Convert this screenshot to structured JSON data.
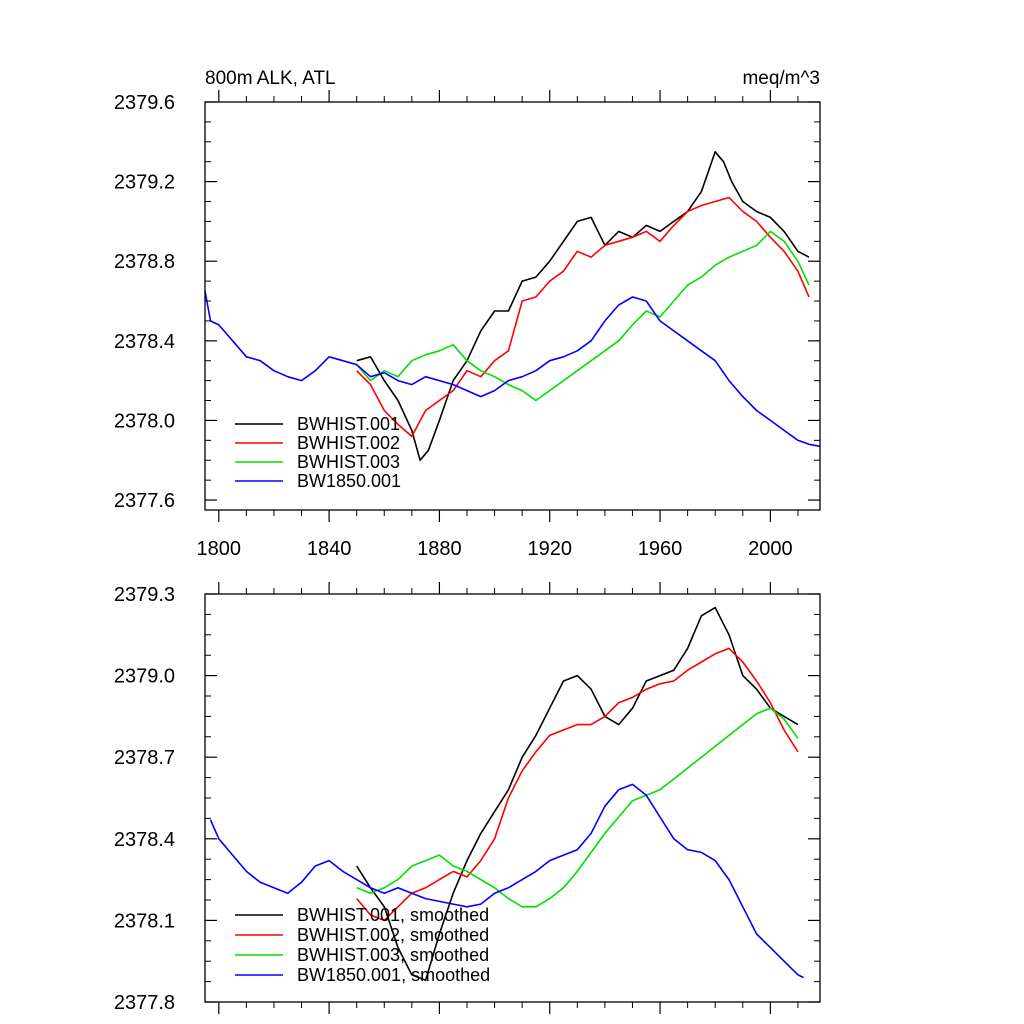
{
  "chart_data": [
    {
      "type": "line",
      "title_left": "800m ALK, ATL",
      "title_right": "meq/m^3",
      "xlim": [
        1795,
        2018
      ],
      "ylim": [
        2377.55,
        2379.6
      ],
      "xticks": [
        1800,
        1840,
        1880,
        1920,
        1960,
        2000
      ],
      "yticks": [
        2377.6,
        2378.0,
        2378.4,
        2378.8,
        2379.2,
        2379.6
      ],
      "ytick_labels": [
        "2377.6",
        "2378.0",
        "2378.4",
        "2378.8",
        "2379.2",
        "2379.6"
      ],
      "xtick_labels": [
        "1800",
        "1840",
        "1880",
        "1920",
        "1960",
        "2000"
      ],
      "legend_position": "bottom-left",
      "series": [
        {
          "name": "BWHIST.001",
          "color": "#000000",
          "x": [
            1850,
            1855,
            1860,
            1865,
            1870,
            1873,
            1876,
            1880,
            1885,
            1890,
            1895,
            1900,
            1905,
            1910,
            1915,
            1920,
            1925,
            1930,
            1935,
            1940,
            1945,
            1950,
            1955,
            1960,
            1965,
            1970,
            1975,
            1980,
            1983,
            1986,
            1990,
            1995,
            2000,
            2005,
            2010,
            2014
          ],
          "y": [
            2378.3,
            2378.32,
            2378.2,
            2378.1,
            2377.95,
            2377.8,
            2377.85,
            2378.0,
            2378.2,
            2378.3,
            2378.45,
            2378.55,
            2378.55,
            2378.7,
            2378.72,
            2378.8,
            2378.9,
            2379.0,
            2379.02,
            2378.88,
            2378.95,
            2378.92,
            2378.98,
            2378.95,
            2379.0,
            2379.05,
            2379.15,
            2379.35,
            2379.3,
            2379.2,
            2379.1,
            2379.05,
            2379.02,
            2378.95,
            2378.85,
            2378.82
          ]
        },
        {
          "name": "BWHIST.002",
          "color": "#ff0000",
          "x": [
            1850,
            1855,
            1860,
            1865,
            1870,
            1875,
            1880,
            1885,
            1890,
            1895,
            1900,
            1905,
            1910,
            1915,
            1920,
            1925,
            1930,
            1935,
            1940,
            1945,
            1950,
            1955,
            1960,
            1965,
            1970,
            1975,
            1980,
            1985,
            1990,
            1995,
            2000,
            2005,
            2010,
            2014
          ],
          "y": [
            2378.25,
            2378.18,
            2378.05,
            2377.98,
            2377.92,
            2378.05,
            2378.1,
            2378.15,
            2378.25,
            2378.22,
            2378.3,
            2378.35,
            2378.6,
            2378.62,
            2378.7,
            2378.75,
            2378.85,
            2378.82,
            2378.88,
            2378.9,
            2378.92,
            2378.95,
            2378.9,
            2378.98,
            2379.05,
            2379.08,
            2379.1,
            2379.12,
            2379.05,
            2379.0,
            2378.92,
            2378.85,
            2378.75,
            2378.62
          ]
        },
        {
          "name": "BWHIST.003",
          "color": "#00e000",
          "x": [
            1850,
            1855,
            1860,
            1865,
            1870,
            1875,
            1880,
            1885,
            1890,
            1895,
            1900,
            1905,
            1910,
            1915,
            1920,
            1925,
            1930,
            1935,
            1940,
            1945,
            1950,
            1955,
            1960,
            1965,
            1970,
            1975,
            1980,
            1985,
            1990,
            1995,
            2000,
            2005,
            2010,
            2014
          ],
          "y": [
            2378.28,
            2378.2,
            2378.25,
            2378.22,
            2378.3,
            2378.33,
            2378.35,
            2378.38,
            2378.3,
            2378.25,
            2378.22,
            2378.18,
            2378.15,
            2378.1,
            2378.15,
            2378.2,
            2378.25,
            2378.3,
            2378.35,
            2378.4,
            2378.48,
            2378.55,
            2378.52,
            2378.6,
            2378.68,
            2378.72,
            2378.78,
            2378.82,
            2378.85,
            2378.88,
            2378.95,
            2378.9,
            2378.8,
            2378.68
          ]
        },
        {
          "name": "BW1850.001",
          "color": "#0000ff",
          "x": [
            1795,
            1797,
            1800,
            1805,
            1810,
            1815,
            1820,
            1825,
            1830,
            1835,
            1840,
            1845,
            1850,
            1855,
            1860,
            1865,
            1870,
            1875,
            1880,
            1885,
            1890,
            1895,
            1900,
            1905,
            1910,
            1915,
            1920,
            1925,
            1930,
            1935,
            1940,
            1945,
            1950,
            1955,
            1960,
            1965,
            1970,
            1975,
            1980,
            1985,
            1990,
            1995,
            2000,
            2005,
            2010,
            2014,
            2018
          ],
          "y": [
            2378.65,
            2378.5,
            2378.48,
            2378.4,
            2378.32,
            2378.3,
            2378.25,
            2378.22,
            2378.2,
            2378.25,
            2378.32,
            2378.3,
            2378.28,
            2378.22,
            2378.24,
            2378.2,
            2378.18,
            2378.22,
            2378.2,
            2378.18,
            2378.15,
            2378.12,
            2378.15,
            2378.2,
            2378.22,
            2378.25,
            2378.3,
            2378.32,
            2378.35,
            2378.4,
            2378.5,
            2378.58,
            2378.62,
            2378.6,
            2378.5,
            2378.45,
            2378.4,
            2378.35,
            2378.3,
            2378.2,
            2378.12,
            2378.05,
            2378.0,
            2377.95,
            2377.9,
            2377.88,
            2377.87
          ]
        }
      ]
    },
    {
      "type": "line",
      "xlim": [
        1795,
        2018
      ],
      "ylim": [
        2377.8,
        2379.3
      ],
      "xticks": [
        1800,
        1840,
        1880,
        1920,
        1960,
        2000
      ],
      "yticks": [
        2377.8,
        2378.1,
        2378.4,
        2378.7,
        2379.0,
        2379.3
      ],
      "ytick_labels": [
        "2377.8",
        "2378.1",
        "2378.4",
        "2378.7",
        "2379.0",
        "2379.3"
      ],
      "legend_position": "bottom-left",
      "series": [
        {
          "name": "BWHIST.001, smoothed",
          "color": "#000000",
          "x": [
            1850,
            1855,
            1860,
            1865,
            1870,
            1875,
            1880,
            1885,
            1890,
            1895,
            1900,
            1905,
            1910,
            1915,
            1920,
            1925,
            1930,
            1935,
            1940,
            1945,
            1950,
            1955,
            1960,
            1965,
            1970,
            1975,
            1980,
            1985,
            1990,
            1995,
            2000,
            2005,
            2010
          ],
          "y": [
            2378.3,
            2378.22,
            2378.15,
            2378.0,
            2377.9,
            2377.88,
            2378.05,
            2378.2,
            2378.32,
            2378.42,
            2378.5,
            2378.58,
            2378.7,
            2378.78,
            2378.88,
            2378.98,
            2379.0,
            2378.95,
            2378.85,
            2378.82,
            2378.88,
            2378.98,
            2379.0,
            2379.02,
            2379.1,
            2379.22,
            2379.25,
            2379.15,
            2379.0,
            2378.95,
            2378.88,
            2378.85,
            2378.82
          ]
        },
        {
          "name": "BWHIST.002, smoothed",
          "color": "#ff0000",
          "x": [
            1850,
            1855,
            1860,
            1865,
            1870,
            1875,
            1880,
            1885,
            1890,
            1895,
            1900,
            1905,
            1910,
            1915,
            1920,
            1925,
            1930,
            1935,
            1940,
            1945,
            1950,
            1955,
            1960,
            1965,
            1970,
            1975,
            1980,
            1985,
            1990,
            1995,
            2000,
            2005,
            2010
          ],
          "y": [
            2378.18,
            2378.12,
            2378.1,
            2378.15,
            2378.2,
            2378.22,
            2378.25,
            2378.28,
            2378.26,
            2378.32,
            2378.4,
            2378.55,
            2378.65,
            2378.72,
            2378.78,
            2378.8,
            2378.82,
            2378.82,
            2378.85,
            2378.9,
            2378.92,
            2378.95,
            2378.97,
            2378.98,
            2379.02,
            2379.05,
            2379.08,
            2379.1,
            2379.05,
            2378.98,
            2378.9,
            2378.8,
            2378.72
          ]
        },
        {
          "name": "BWHIST.003, smoothed",
          "color": "#00e000",
          "x": [
            1850,
            1855,
            1860,
            1865,
            1870,
            1875,
            1880,
            1885,
            1890,
            1895,
            1900,
            1905,
            1910,
            1915,
            1920,
            1925,
            1930,
            1935,
            1940,
            1945,
            1950,
            1955,
            1960,
            1965,
            1970,
            1975,
            1980,
            1985,
            1990,
            1995,
            2000,
            2005,
            2010
          ],
          "y": [
            2378.22,
            2378.2,
            2378.22,
            2378.25,
            2378.3,
            2378.32,
            2378.34,
            2378.3,
            2378.28,
            2378.25,
            2378.22,
            2378.18,
            2378.15,
            2378.15,
            2378.18,
            2378.22,
            2378.28,
            2378.35,
            2378.42,
            2378.48,
            2378.54,
            2378.56,
            2378.58,
            2378.62,
            2378.66,
            2378.7,
            2378.74,
            2378.78,
            2378.82,
            2378.86,
            2378.88,
            2378.84,
            2378.77
          ]
        },
        {
          "name": "BW1850.001, smoothed",
          "color": "#0000ff",
          "x": [
            1797,
            1800,
            1805,
            1810,
            1815,
            1820,
            1825,
            1830,
            1835,
            1840,
            1845,
            1850,
            1855,
            1860,
            1865,
            1870,
            1875,
            1880,
            1885,
            1890,
            1895,
            1900,
            1905,
            1910,
            1915,
            1920,
            1925,
            1930,
            1935,
            1940,
            1945,
            1950,
            1955,
            1960,
            1965,
            1970,
            1975,
            1980,
            1985,
            1990,
            1995,
            2000,
            2005,
            2010,
            2012
          ],
          "y": [
            2378.47,
            2378.4,
            2378.34,
            2378.28,
            2378.24,
            2378.22,
            2378.2,
            2378.24,
            2378.3,
            2378.32,
            2378.28,
            2378.25,
            2378.22,
            2378.2,
            2378.22,
            2378.2,
            2378.18,
            2378.17,
            2378.16,
            2378.15,
            2378.16,
            2378.2,
            2378.22,
            2378.25,
            2378.28,
            2378.32,
            2378.34,
            2378.36,
            2378.42,
            2378.52,
            2378.58,
            2378.6,
            2378.56,
            2378.48,
            2378.4,
            2378.36,
            2378.35,
            2378.32,
            2378.25,
            2378.15,
            2378.05,
            2378.0,
            2377.95,
            2377.9,
            2377.89
          ]
        }
      ]
    }
  ]
}
